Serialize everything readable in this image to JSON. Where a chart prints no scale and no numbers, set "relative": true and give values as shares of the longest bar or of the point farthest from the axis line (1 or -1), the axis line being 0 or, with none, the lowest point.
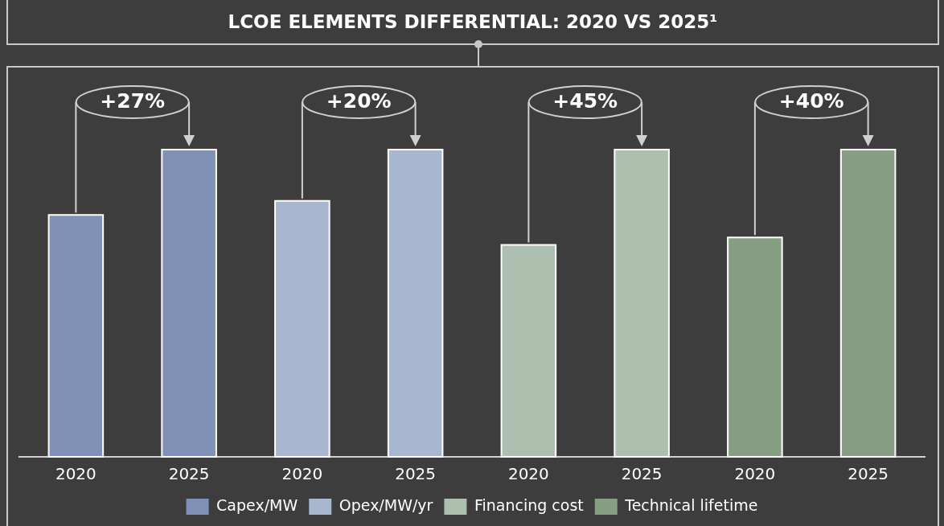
{
  "chart_data": {
    "type": "bar",
    "title": "LCOE ELEMENTS DIFFERENTIAL: 2020 VS 2025¹",
    "relative": true,
    "categories": [
      "2020",
      "2025",
      "2020",
      "2025",
      "2020",
      "2025",
      "2020",
      "2025"
    ],
    "legend": "bottom",
    "annotations": [
      "+27%",
      "+20%",
      "+45%",
      "+40%"
    ],
    "series": [
      {
        "name": "Capex/MW",
        "color": "#7f92b5",
        "values": [
          0.787,
          1,
          null,
          null,
          null,
          null,
          null,
          null
        ]
      },
      {
        "name": "Opex/MW/yr",
        "color": "#a9b6cf",
        "values": [
          null,
          null,
          0.833,
          1,
          null,
          null,
          null,
          null
        ]
      },
      {
        "name": "Financing cost",
        "color": "#adbfae",
        "values": [
          null,
          null,
          null,
          null,
          0.69,
          1,
          null,
          null
        ]
      },
      {
        "name": "Technical lifetime",
        "color": "#879e85",
        "values": [
          null,
          null,
          null,
          null,
          null,
          null,
          0.714,
          1
        ]
      }
    ]
  }
}
